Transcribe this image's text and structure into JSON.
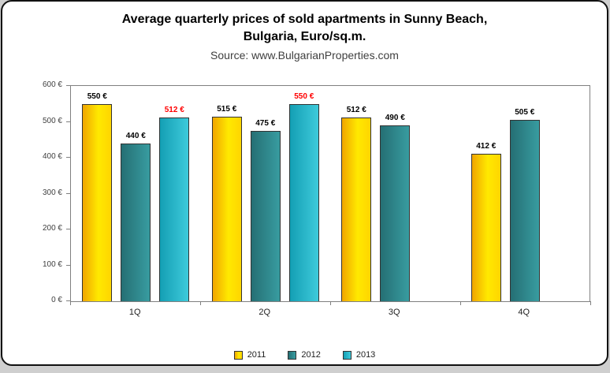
{
  "header": {
    "title_line1": "Average quarterly prices of sold apartments in Sunny Beach,",
    "title_line2": "Bulgaria, Euro/sq.m.",
    "source": "Source: www.BulgarianProperties.com"
  },
  "chart_data": {
    "type": "bar",
    "title": "Average quarterly prices of sold apartments in Sunny Beach, Bulgaria, Euro/sq.m.",
    "categories": [
      "1Q",
      "2Q",
      "3Q",
      "4Q"
    ],
    "series": [
      {
        "name": "2011",
        "values": [
          550,
          515,
          512,
          412
        ],
        "color": "#FFD300",
        "fill": "linear-gradient(90deg,#F0A500 0%,#FFE900 55%,#FFD500 100%)",
        "label_color": "#000000"
      },
      {
        "name": "2012",
        "values": [
          440,
          475,
          490,
          505
        ],
        "color": "#2E8C8C",
        "fill": "linear-gradient(90deg,#256F74 0%,#389CA0 100%)",
        "label_color": "#000000"
      },
      {
        "name": "2013",
        "values": [
          512,
          550,
          null,
          null
        ],
        "color": "#2ABCCB",
        "fill": "linear-gradient(90deg,#149FB4 0%,#3ECADB 100%)",
        "label_color": "#FF0000"
      }
    ],
    "ylim": [
      0,
      600
    ],
    "ytick_values": [
      0,
      100,
      200,
      300,
      400,
      500,
      600
    ],
    "currency": "€",
    "legend_position": "bottom",
    "grid": false
  }
}
